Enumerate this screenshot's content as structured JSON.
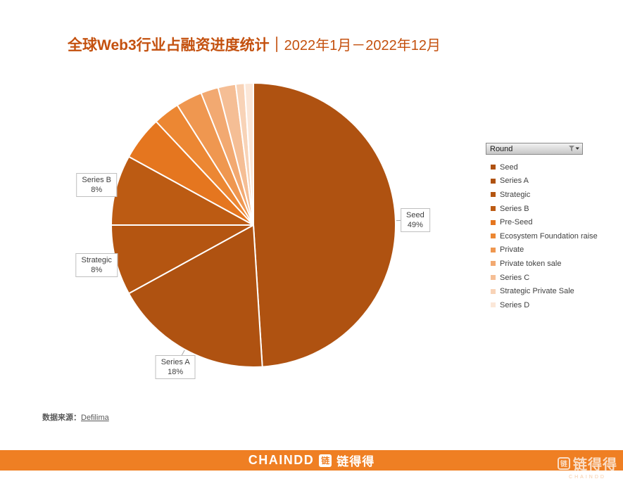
{
  "title": {
    "main": "全球Web3行业占融资进度统计",
    "separator": "｜",
    "period": "2022年1月－2022年12月"
  },
  "chart_data": {
    "type": "pie",
    "title": "全球Web3行业占融资进度统计 2022年1月－2022年12月",
    "unit": "%",
    "start_angle_deg": 0,
    "direction": "clockwise",
    "legend_title": "Round",
    "legend_position": "right",
    "slices": [
      {
        "label": "Seed",
        "value": 49,
        "color": "#AF5211",
        "callout": true
      },
      {
        "label": "Series A",
        "value": 18,
        "color": "#AF5211",
        "callout": true
      },
      {
        "label": "Strategic",
        "value": 8,
        "color": "#B45511",
        "callout": true
      },
      {
        "label": "Series B",
        "value": 8,
        "color": "#BC5B13",
        "callout": true
      },
      {
        "label": "Pre-Seed",
        "value": 5,
        "color": "#E5761F",
        "callout": false
      },
      {
        "label": "Ecosystem Foundation raise",
        "value": 3,
        "color": "#EC8733",
        "callout": false
      },
      {
        "label": "Private",
        "value": 3,
        "color": "#EF9750",
        "callout": false
      },
      {
        "label": "Private token sale",
        "value": 2,
        "color": "#F2A971",
        "callout": false
      },
      {
        "label": "Series C",
        "value": 2,
        "color": "#F5BE95",
        "callout": false
      },
      {
        "label": "Strategic Private Sale",
        "value": 1,
        "color": "#F8D3B7",
        "callout": false
      },
      {
        "label": "Series D",
        "value": 1,
        "color": "#FBE7D8",
        "callout": false
      }
    ]
  },
  "legend": {
    "field_button_label": "Round"
  },
  "source": {
    "label": "数据来源：",
    "value": "Defilima"
  },
  "footer_bar": {
    "brand_en": "CHAINDD",
    "brand_cn": "链得得",
    "icon_char": "链"
  },
  "watermark": {
    "brand_cn": "链得得",
    "brand_en": "CHAINDD",
    "icon_char": "链"
  }
}
